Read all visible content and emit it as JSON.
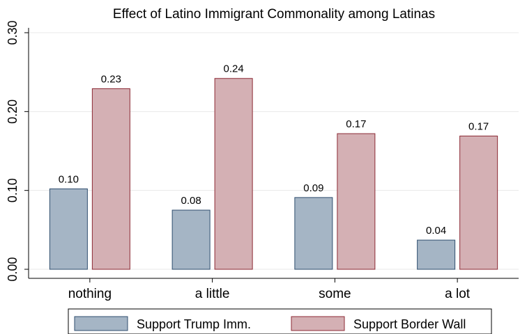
{
  "chart_data": {
    "type": "bar",
    "title": "Effect of Latino Immigrant Commonality among Latinas",
    "xlabel": "",
    "ylabel": "",
    "categories": [
      "nothing",
      "a little",
      "some",
      "a lot"
    ],
    "series": [
      {
        "name": "Support Trump Imm.",
        "values": [
          0.102,
          0.075,
          0.091,
          0.037
        ],
        "labels": [
          "0.10",
          "0.08",
          "0.09",
          "0.04"
        ],
        "fill": "#a5b5c5",
        "stroke": "#2f4d6e"
      },
      {
        "name": "Support Border Wall",
        "values": [
          0.229,
          0.242,
          0.172,
          0.169
        ],
        "labels": [
          "0.23",
          "0.24",
          "0.17",
          "0.17"
        ],
        "fill": "#d4b0b4",
        "stroke": "#8c2a35"
      }
    ],
    "ylim": [
      0,
      0.3
    ],
    "yticks": [
      0,
      0.1,
      0.2,
      0.3
    ],
    "ytick_labels": [
      "0.00",
      "0.10",
      "0.20",
      "0.30"
    ],
    "grid": true,
    "legend_position": "bottom"
  }
}
